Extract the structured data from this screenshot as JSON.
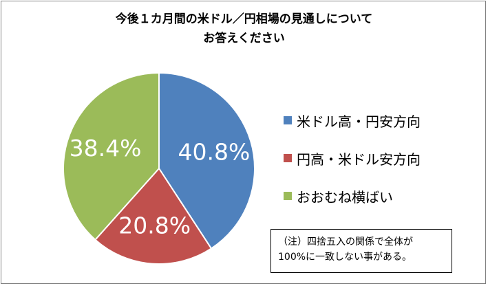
{
  "title_lines": [
    "今後１カ月間の米ドル／円相場の見通しについて",
    "お答えください"
  ],
  "note_lines": [
    "（注）四捨五入の関係で全体が",
    "100%に一致しない事がある。"
  ],
  "chart_data": {
    "type": "pie",
    "title": "今後１カ月間の米ドル／円相場の見通しについてお答えください",
    "start_angle_deg": 0,
    "direction": "clockwise",
    "legend_position": "right",
    "slices": [
      {
        "label": "米ドル高・円安方向",
        "value": 40.8,
        "value_label": "40.8%",
        "color": "#4f81bd"
      },
      {
        "label": "円高・米ドル安方向",
        "value": 20.8,
        "value_label": "20.8%",
        "color": "#c0504d"
      },
      {
        "label": "おおむね横ばい",
        "value": 38.4,
        "value_label": "38.4%",
        "color": "#9bbb59"
      }
    ]
  }
}
